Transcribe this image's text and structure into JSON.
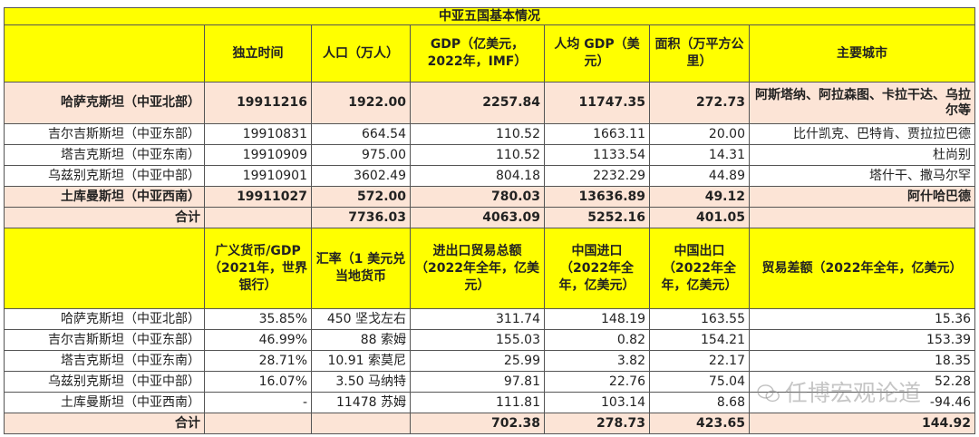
{
  "title": "中亚五国基本情况",
  "table1": {
    "headers": [
      "",
      "独立时间",
      "人口（万人）",
      "GDP（亿美元，2022年，IMF）",
      "人均 GDP（美元）",
      "面积（万平方公里）",
      "主要城市"
    ],
    "rows": [
      {
        "country": "哈萨克斯坦（中亚北部）",
        "independence": "19911216",
        "population": "1922.00",
        "gdp": "2257.84",
        "gdp_per_capita": "11747.35",
        "area": "272.73",
        "cities": "阿斯塔纳、阿拉森图、卡拉干达、乌拉尔等",
        "highlight": true
      },
      {
        "country": "吉尔吉斯斯坦（中亚东部）",
        "independence": "19910831",
        "population": "664.54",
        "gdp": "110.52",
        "gdp_per_capita": "1663.11",
        "area": "20.00",
        "cities": "比什凯克、巴特肯、贾拉拉巴德",
        "highlight": false
      },
      {
        "country": "塔吉克斯坦（中亚东南）",
        "independence": "19910909",
        "population": "975.00",
        "gdp": "110.52",
        "gdp_per_capita": "1133.54",
        "area": "14.31",
        "cities": "杜尚别",
        "highlight": false
      },
      {
        "country": "乌兹别克斯坦（中亚中部）",
        "independence": "19910901",
        "population": "3602.49",
        "gdp": "804.18",
        "gdp_per_capita": "2232.29",
        "area": "44.89",
        "cities": "塔什干、撒马尔罕",
        "highlight": false
      },
      {
        "country": "土库曼斯坦（中亚西南）",
        "independence": "19911027",
        "population": "572.00",
        "gdp": "780.03",
        "gdp_per_capita": "13636.89",
        "area": "49.12",
        "cities": "阿什哈巴德",
        "highlight": true
      }
    ],
    "total": {
      "label": "合计",
      "independence": "",
      "population": "7736.03",
      "gdp": "4063.09",
      "gdp_per_capita": "5252.16",
      "area": "401.05",
      "cities": ""
    }
  },
  "table2": {
    "headers": [
      "",
      "广义货币/GDP（2021年，世界银行）",
      "汇率（1 美元兑当地货币",
      "进出口贸易总额（2022年全年，亿美元）",
      "中国进口（2022年全年，亿美元）",
      "中国出口（2022年全年，亿美元）",
      "贸易差额（2022年全年，亿美元）"
    ],
    "rows": [
      {
        "country": "哈萨克斯坦（中亚北部）",
        "m2_gdp": "35.85%",
        "fx": "450 坚戈左右",
        "trade_total": "311.74",
        "china_import": "148.19",
        "china_export": "163.55",
        "balance": "15.36"
      },
      {
        "country": "吉尔吉斯斯坦（中亚东部）",
        "m2_gdp": "46.99%",
        "fx": "88 索姆",
        "trade_total": "155.03",
        "china_import": "0.82",
        "china_export": "154.21",
        "balance": "153.39"
      },
      {
        "country": "塔吉克斯坦（中亚东南）",
        "m2_gdp": "28.71%",
        "fx": "10.91 索莫尼",
        "trade_total": "25.99",
        "china_import": "3.82",
        "china_export": "22.17",
        "balance": "18.35"
      },
      {
        "country": "乌兹别克斯坦（中亚中部）",
        "m2_gdp": "16.07%",
        "fx": "3.50 马纳特",
        "trade_total": "97.81",
        "china_import": "22.76",
        "china_export": "75.04",
        "balance": "52.28"
      },
      {
        "country": "土库曼斯坦（中亚西南）",
        "m2_gdp": "-",
        "fx": "11478 苏姆",
        "trade_total": "111.81",
        "china_import": "103.14",
        "china_export": "8.68",
        "balance": "-94.46"
      }
    ],
    "total": {
      "label": "合计",
      "m2_gdp": "",
      "fx": "",
      "trade_total": "702.38",
      "china_import": "278.73",
      "china_export": "423.65",
      "balance": "144.92"
    }
  },
  "watermark": "任博宏观论道",
  "colors": {
    "header_bg": "#ffff00",
    "highlight_bg": "#fce4d6"
  }
}
